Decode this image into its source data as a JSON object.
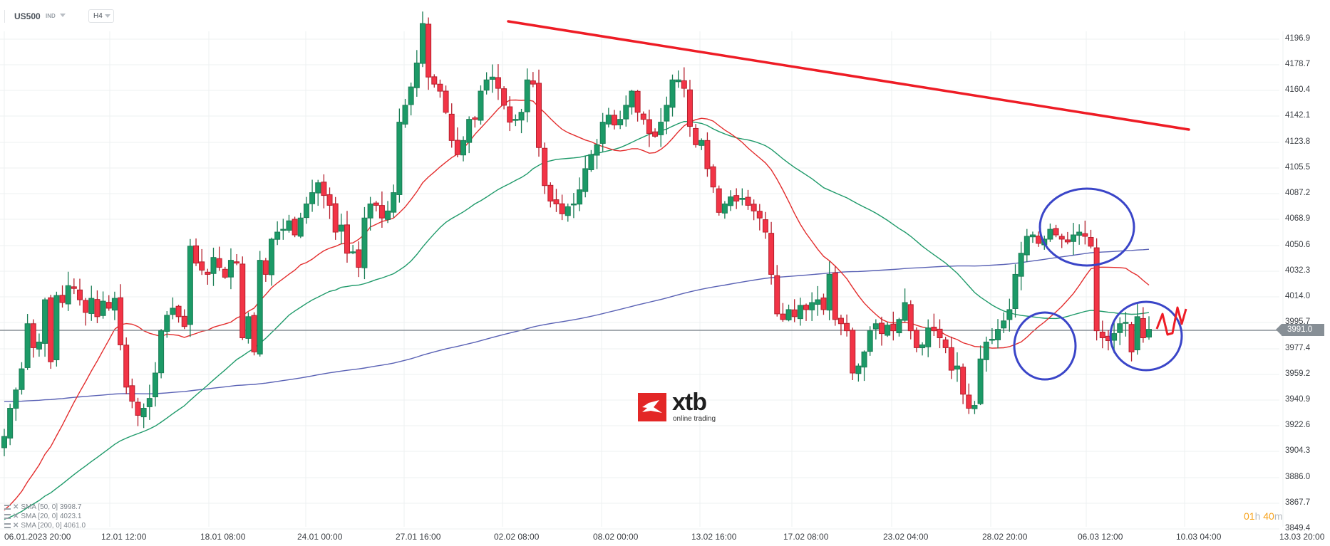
{
  "header": {
    "symbol": "US500",
    "symbol_type": "IND",
    "timeframe": "H4"
  },
  "price_axis": {
    "labels": [
      "4196.9",
      "4178.7",
      "4160.4",
      "4142.1",
      "4123.8",
      "4105.5",
      "4087.2",
      "4068.9",
      "4050.6",
      "4032.3",
      "4014.0",
      "3995.7",
      "3977.4",
      "3959.2",
      "3940.9",
      "3922.6",
      "3904.3",
      "3886.0",
      "3867.7",
      "3849.4"
    ],
    "current_price": "3991.0"
  },
  "time_axis": {
    "labels": [
      "06.01.2023  20:00",
      "12.01  12:00",
      "18.01  08:00",
      "24.01  00:00",
      "27.01  16:00",
      "02.02  08:00",
      "08.02  00:00",
      "13.02  16:00",
      "17.02  08:00",
      "23.02  04:00",
      "28.02  20:00",
      "06.03  12:00",
      "10.03  04:00",
      "13.03  20:00"
    ]
  },
  "indicators": [
    {
      "label": "SMA [50, 0] 3998.7",
      "color": "#1f9a6a"
    },
    {
      "label": "SMA [20, 0] 4023.1",
      "color": "#e32d2d"
    },
    {
      "label": "SMA [200, 0] 4061.0",
      "color": "#5a62b5"
    }
  ],
  "timer": {
    "hours": "01",
    "h_unit": "h",
    "minutes": "40",
    "m_unit": "m"
  },
  "logo": {
    "brand": "xtb",
    "tagline": "online trading"
  },
  "colors": {
    "bull": "#1c9a67",
    "bear": "#f23446",
    "sma20": "#e32d2d",
    "sma50": "#1f9a6a",
    "sma200": "#5a62b5",
    "trendline": "#ee1c25",
    "annotation_circle": "#3a45c8",
    "grid": "#eef0f2",
    "current_line": "#878f96"
  },
  "chart_data": {
    "type": "candlestick",
    "title": "US500 H4",
    "xlabel": "",
    "ylabel": "",
    "ylim": [
      3849.4,
      4205.0
    ],
    "x": [
      "06.01.2023 20:00",
      "12.01 12:00",
      "18.01 08:00",
      "24.01 00:00",
      "27.01 16:00",
      "02.02 08:00",
      "08.02 00:00",
      "13.02 16:00",
      "17.02 08:00",
      "23.02 04:00",
      "28.02 20:00",
      "06.03 12:00",
      "10.03 04:00",
      "13.03 20:00"
    ],
    "candles_close_path": [
      3915,
      3935,
      3948,
      3963,
      3995,
      3978,
      3982,
      4012,
      3968,
      4015,
      4010,
      4022,
      4020,
      4012,
      4003,
      4013,
      4000,
      4011,
      4006,
      4013,
      3980,
      3950,
      3940,
      3930,
      3935,
      3942,
      3960,
      3990,
      4001,
      4006,
      4000,
      3993,
      4050,
      4038,
      4033,
      4030,
      4042,
      4035,
      4028,
      4040,
      4038,
      3985,
      4000,
      3975,
      4040,
      4030,
      4055,
      4060,
      4062,
      4068,
      4058,
      4070,
      4080,
      4088,
      4095,
      4086,
      4079,
      4060,
      4065,
      4045,
      4046,
      4035,
      4070,
      4080,
      4079,
      4070,
      4075,
      4088,
      4138,
      4150,
      4163,
      4180,
      4208,
      4170,
      4165,
      4160,
      4145,
      4125,
      4115,
      4125,
      4140,
      4140,
      4160,
      4168,
      4170,
      4162,
      4150,
      4138,
      4140,
      4145,
      4168,
      4165,
      4120,
      4093,
      4082,
      4080,
      4073,
      4078,
      4080,
      4090,
      4105,
      4115,
      4122,
      4138,
      4143,
      4136,
      4140,
      4150,
      4160,
      4145,
      4140,
      4130,
      4128,
      4138,
      4150,
      4168,
      4168,
      4162,
      4135,
      4122,
      4125,
      4105,
      4092,
      4074,
      4080,
      4085,
      4082,
      4084,
      4079,
      4075,
      4070,
      4060,
      4030,
      4002,
      3998,
      4005,
      4000,
      4008,
      4005,
      4010,
      4012,
      4005,
      4030,
      3998,
      3995,
      3990,
      3960,
      3965,
      3975,
      3990,
      3995,
      3988,
      3994,
      3990,
      3998,
      4010,
      3990,
      3978,
      3980,
      3992,
      3990,
      3985,
      3978,
      3962,
      3965,
      3945,
      3935,
      3937,
      3970,
      3982,
      3984,
      3991,
      3997,
      4005,
      4030,
      4045,
      4057,
      4058,
      4052,
      4055,
      4062,
      4058,
      4055,
      4053,
      4058,
      4060,
      4057,
      4050,
      3990,
      3985,
      3983,
      3988,
      3995,
      3996,
      3975,
      4000,
      3985,
      3991
    ],
    "series": [
      {
        "name": "SMA [20, 0]",
        "last": 4023.1
      },
      {
        "name": "SMA [50, 0]",
        "last": 3998.7
      },
      {
        "name": "SMA [200, 0]",
        "last": 4061.0
      }
    ],
    "annotations": [
      {
        "type": "trendline",
        "from": {
          "x": "02.02 08:00",
          "y": 4205
        },
        "to": {
          "x": "09.03",
          "y": 4131
        }
      },
      {
        "type": "circle",
        "label": "upper consolidation near 4060"
      },
      {
        "type": "circle",
        "label": "breakout near 3975"
      },
      {
        "type": "circle",
        "label": "current zone near 3990"
      },
      {
        "type": "freehand",
        "label": "N-shaped projected path"
      }
    ],
    "current_price": 3991.0,
    "grid": true
  }
}
